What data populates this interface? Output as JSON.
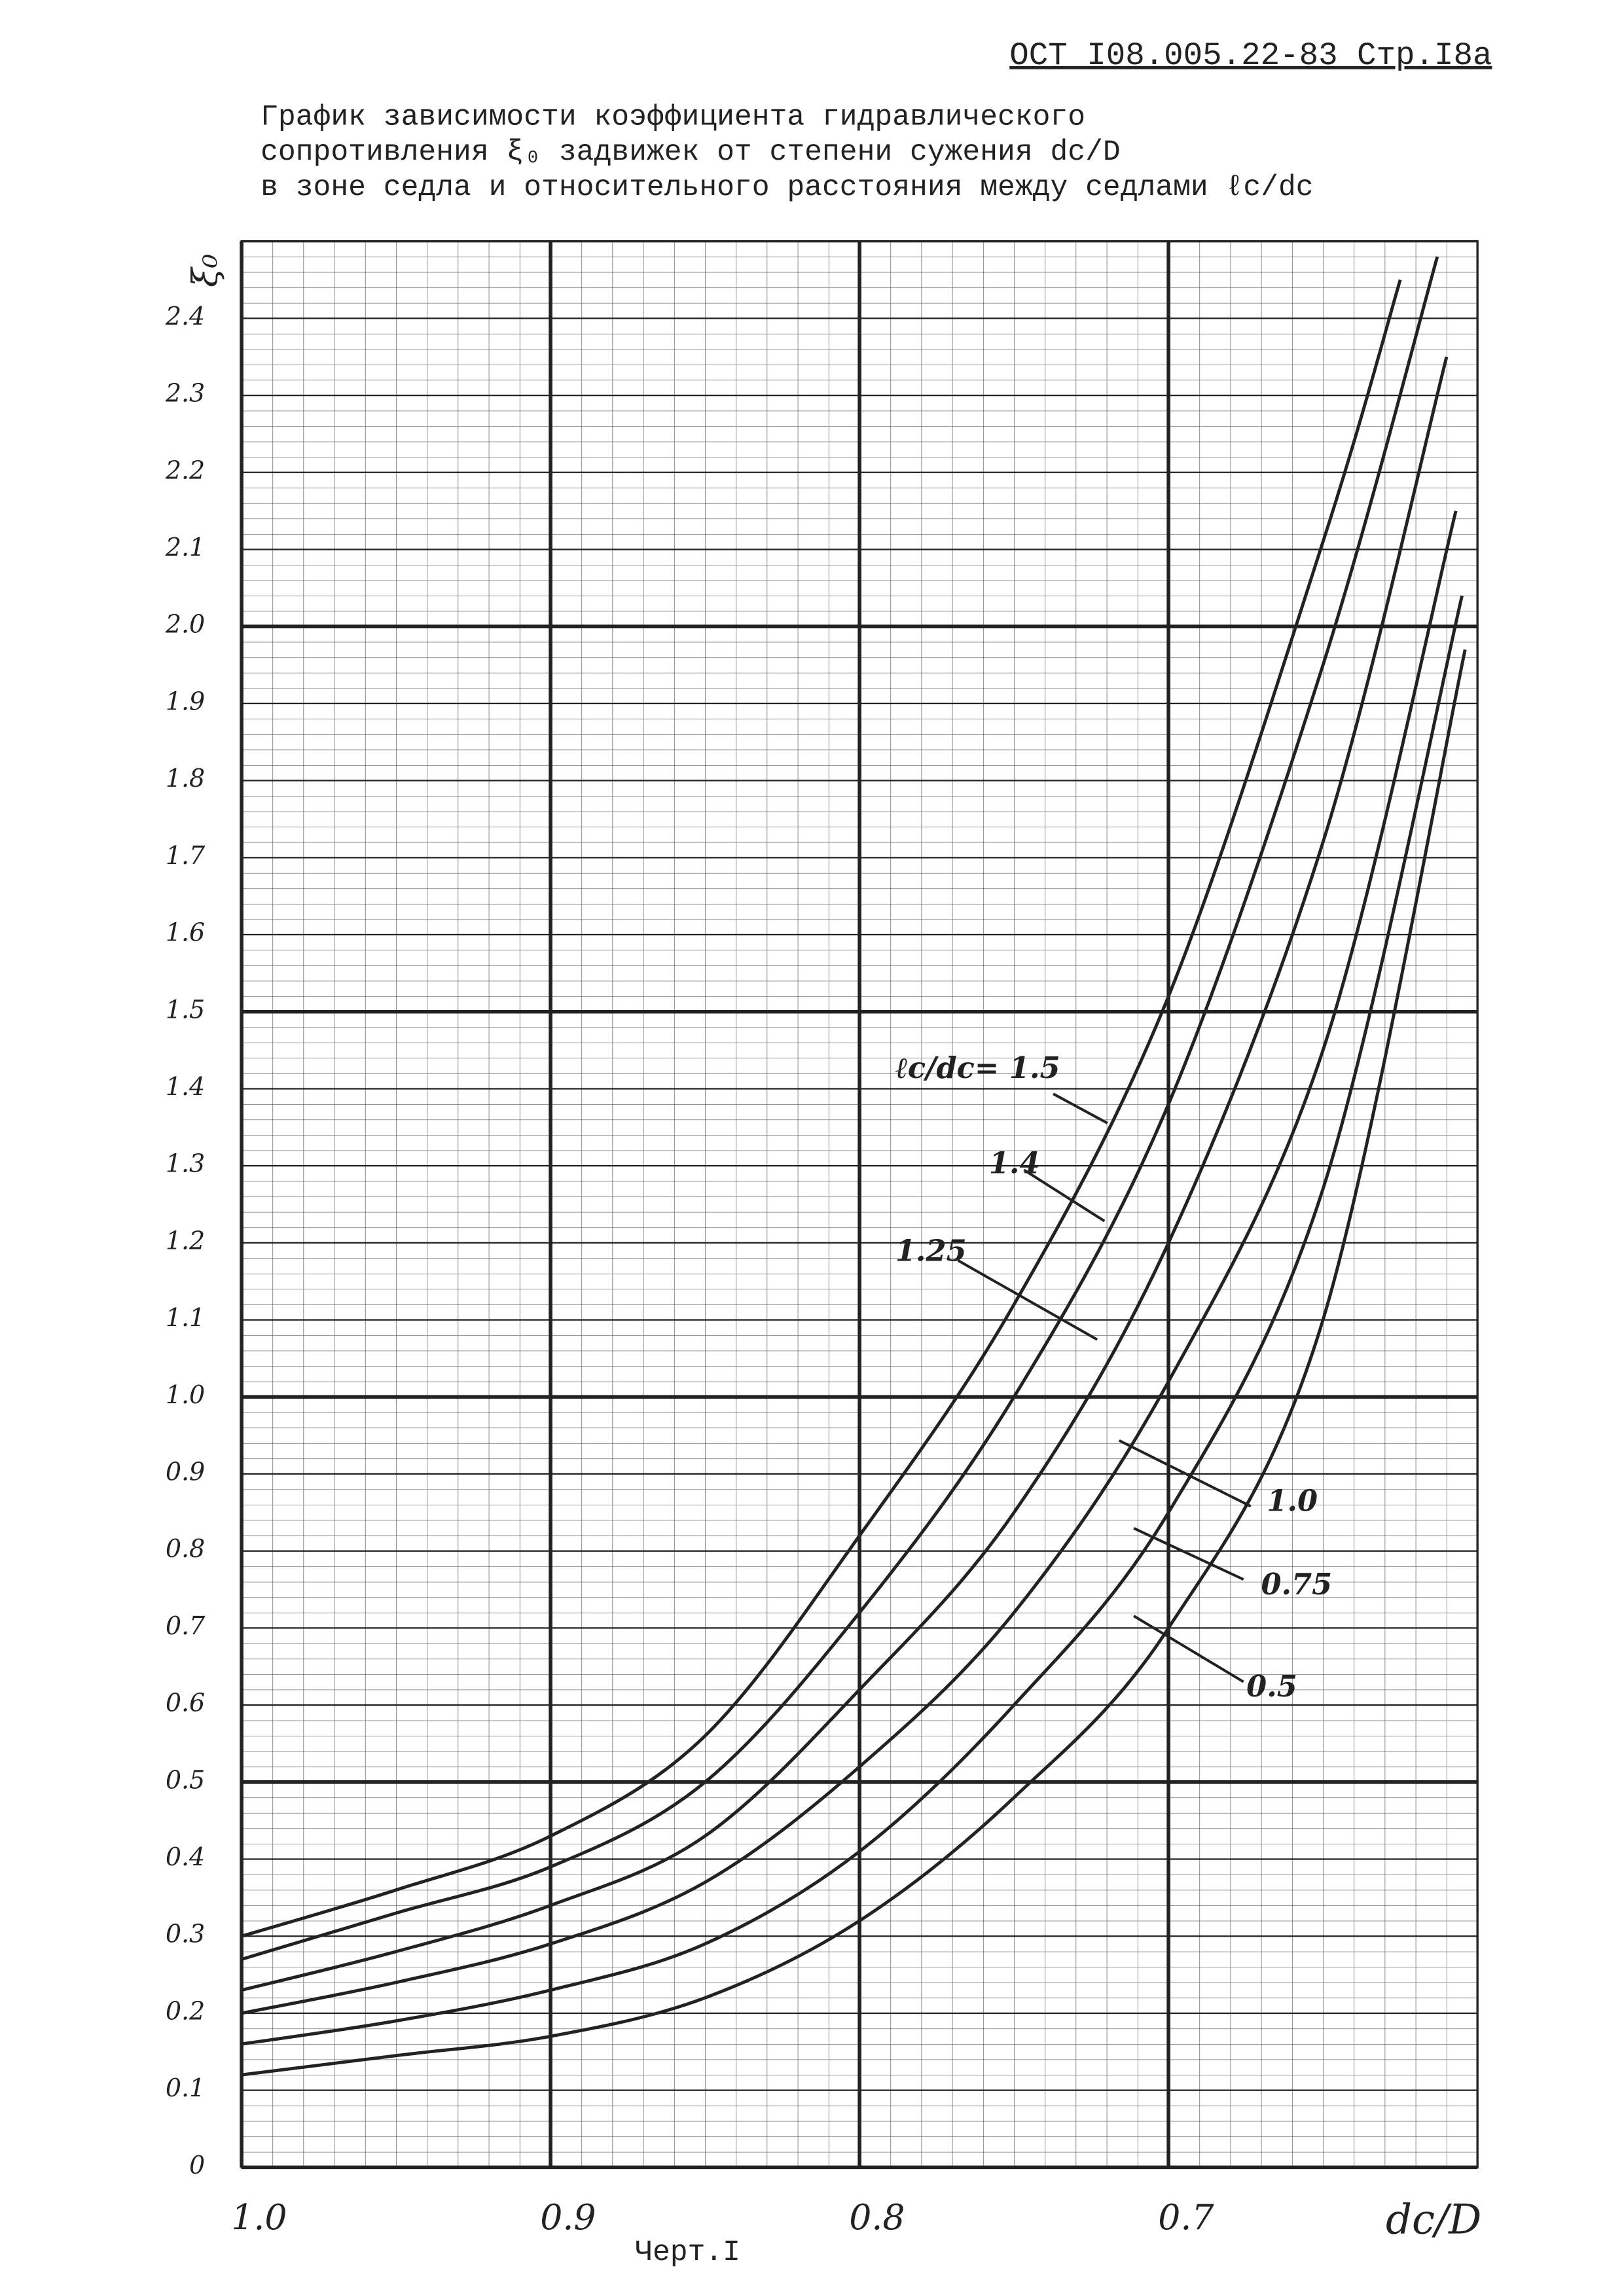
{
  "header": "ОСТ I08.005.22-83 Стр.I8а",
  "chart_data": {
    "type": "line",
    "title": [
      "График зависимости коэффициента гидравлического",
      "сопротивления ξ₀ задвижек от степени сужения dc/D",
      "в зоне седла и относительного расстояния между седлами ℓc/dc"
    ],
    "y_label": "ξ₀",
    "x_label": "dc/D",
    "caption": "Черт.I",
    "xlim": [
      1.0,
      0.6
    ],
    "ylim": [
      0,
      2.5
    ],
    "xticks": [
      {
        "value": 1.0,
        "label": "1.0"
      },
      0.9,
      0.8,
      0.7
    ],
    "yticks": [
      0,
      0.1,
      0.2,
      0.3,
      0.4,
      0.5,
      0.6,
      0.7,
      0.8,
      0.9,
      {
        "value": 1.0,
        "label": "1.0"
      },
      1.1,
      1.2,
      1.3,
      1.4,
      1.5,
      1.6,
      1.7,
      1.8,
      1.9,
      {
        "value": 2.0,
        "label": "2.0"
      },
      2.1,
      2.2,
      2.3,
      2.4
    ],
    "grid": true,
    "series": [
      {
        "name": "ℓc/dc= 1.5",
        "color": "#222",
        "x": [
          1.0,
          0.95,
          0.9,
          0.85,
          0.8,
          0.75,
          0.7,
          0.65,
          0.625
        ],
        "values": [
          0.3,
          0.36,
          0.43,
          0.56,
          0.82,
          1.12,
          1.52,
          2.11,
          2.45
        ]
      },
      {
        "name": "1.4",
        "color": "#222",
        "x": [
          1.0,
          0.95,
          0.9,
          0.85,
          0.8,
          0.75,
          0.7,
          0.65,
          0.613
        ],
        "values": [
          0.27,
          0.33,
          0.39,
          0.5,
          0.72,
          1.0,
          1.38,
          1.95,
          2.48
        ]
      },
      {
        "name": "1.25",
        "color": "#222",
        "x": [
          1.0,
          0.95,
          0.9,
          0.85,
          0.8,
          0.75,
          0.7,
          0.65,
          0.61
        ],
        "values": [
          0.23,
          0.28,
          0.34,
          0.43,
          0.62,
          0.85,
          1.2,
          1.72,
          2.35
        ]
      },
      {
        "name": "1.0",
        "color": "#222",
        "x": [
          1.0,
          0.95,
          0.9,
          0.85,
          0.8,
          0.75,
          0.7,
          0.65,
          0.607
        ],
        "values": [
          0.2,
          0.24,
          0.29,
          0.37,
          0.52,
          0.72,
          1.02,
          1.45,
          2.15
        ]
      },
      {
        "name": "0.75",
        "color": "#222",
        "x": [
          1.0,
          0.95,
          0.9,
          0.85,
          0.8,
          0.75,
          0.7,
          0.65,
          0.605
        ],
        "values": [
          0.16,
          0.19,
          0.23,
          0.29,
          0.41,
          0.6,
          0.85,
          1.27,
          2.04
        ]
      },
      {
        "name": "0.5",
        "color": "#222",
        "x": [
          1.0,
          0.95,
          0.9,
          0.85,
          0.8,
          0.75,
          0.7,
          0.65,
          0.604
        ],
        "values": [
          0.12,
          0.145,
          0.17,
          0.22,
          0.32,
          0.48,
          0.7,
          1.1,
          1.97
        ]
      }
    ]
  }
}
